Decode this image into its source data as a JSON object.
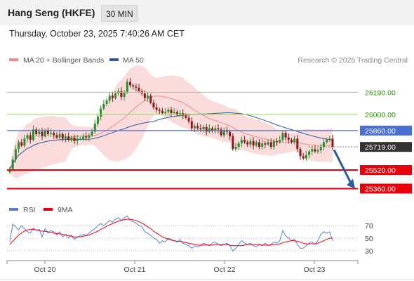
{
  "header": {
    "title": "Hang Seng (HKFE)",
    "interval": "30 MIN"
  },
  "datetime": "Thursday, October 23, 2025 7:40:26 AM CET",
  "credit": "Research © 2025 Trading Central",
  "colors": {
    "bollinger": "#f08a8a",
    "ma50": "#2c5aa0",
    "green": "#9ccf74",
    "blue": "#4a6fd4",
    "red": "#e8000b",
    "up": "#2e8b2e",
    "down": "#8b1a1a",
    "rsi": "#5b7fd4",
    "rsi_ma": "#e8000b",
    "current": "#333333"
  },
  "chart_data": [
    {
      "type": "candlestick",
      "title": "Hang Seng (HKFE)",
      "interval": "30 MIN",
      "legend": [
        "MA 20 + Bollinger Bands",
        "MA 50"
      ],
      "ylim": [
        25290,
        26380
      ],
      "x_tick_labels": [
        "Oct 20",
        "Oct 21",
        "Oct 22",
        "Oct 23"
      ],
      "closes": [
        25530,
        25610,
        25700,
        25760,
        25730,
        25790,
        25820,
        25780,
        25870,
        25830,
        25850,
        25810,
        25860,
        25830,
        25840,
        25820,
        25800,
        25830,
        25790,
        25810,
        25780,
        25800,
        25770,
        25790,
        25790,
        25810,
        25800,
        25820,
        25850,
        25920,
        25980,
        26050,
        26090,
        26120,
        26160,
        26140,
        26180,
        26200,
        26150,
        26190,
        26280,
        26250,
        26240,
        26230,
        26200,
        26180,
        26140,
        26160,
        26100,
        26060,
        26040,
        26030,
        26010,
        26020,
        26040,
        26010,
        26020,
        26000,
        26010,
        25990,
        25970,
        25940,
        25880,
        25900,
        25880,
        25870,
        25890,
        25850,
        25880,
        25860,
        25880,
        25870,
        25820,
        25860,
        25850,
        25810,
        25700,
        25720,
        25750,
        25780,
        25760,
        25740,
        25770,
        25730,
        25760,
        25720,
        25750,
        25740,
        25760,
        25720,
        25770,
        25760,
        25780,
        25840,
        25800,
        25780,
        25760,
        25790,
        25700,
        25640,
        25620,
        25650,
        25680,
        25700,
        25680,
        25690,
        25720,
        25760,
        25780,
        25790,
        25720
      ],
      "levels": [
        {
          "label": "26190.00",
          "value": 26190,
          "style": "green"
        },
        {
          "label": "26000.00",
          "value": 26000,
          "style": "green"
        },
        {
          "label": "25860.00",
          "value": 25860,
          "style": "blue"
        },
        {
          "label": "25719.00",
          "value": 25719,
          "style": "current"
        },
        {
          "label": "25520.00",
          "value": 25520,
          "style": "red"
        },
        {
          "label": "25360.00",
          "value": 25360,
          "style": "red"
        }
      ],
      "arrow": {
        "from": 25719,
        "to": 25360,
        "direction": "down"
      }
    },
    {
      "type": "line",
      "legend": [
        "RSI",
        "9MA"
      ],
      "ylim": [
        20,
        80
      ],
      "y_ticks": [
        30,
        50,
        70
      ],
      "series": [
        {
          "name": "RSI",
          "values": [
            45,
            72,
            68,
            63,
            70,
            65,
            60,
            58,
            66,
            62,
            64,
            52,
            65,
            58,
            62,
            60,
            55,
            60,
            52,
            56,
            50,
            55,
            48,
            52,
            54,
            56,
            54,
            58,
            62,
            65,
            70,
            73,
            70,
            74,
            78,
            75,
            80,
            82,
            78,
            82,
            85,
            78,
            76,
            74,
            70,
            68,
            60,
            58,
            54,
            50,
            48,
            42,
            46,
            44,
            50,
            48,
            46,
            44,
            48,
            42,
            40,
            38,
            34,
            38,
            36,
            38,
            42,
            40,
            38,
            42,
            44,
            40,
            38,
            40,
            42,
            38,
            30,
            34,
            40,
            46,
            42,
            40,
            42,
            38,
            36,
            40,
            38,
            42,
            38,
            40,
            44,
            42,
            46,
            62,
            54,
            50,
            46,
            48,
            40,
            34,
            34,
            38,
            42,
            44,
            40,
            46,
            56,
            60,
            58,
            60,
            46
          ]
        },
        {
          "name": "9MA",
          "values": [
            40,
            45,
            50,
            55,
            58,
            61,
            63,
            64,
            64,
            63,
            62,
            61,
            61,
            60,
            59,
            58,
            57,
            57,
            56,
            55,
            54,
            53,
            52,
            52,
            52,
            53,
            54,
            55,
            57,
            59,
            61,
            64,
            66,
            69,
            71,
            73,
            75,
            77,
            78,
            79,
            80,
            80,
            79,
            78,
            76,
            74,
            71,
            68,
            65,
            61,
            58,
            55,
            52,
            50,
            48,
            47,
            46,
            45,
            45,
            44,
            43,
            42,
            41,
            40,
            39,
            39,
            39,
            39,
            39,
            39,
            40,
            40,
            40,
            40,
            40,
            39,
            38,
            38,
            38,
            38,
            39,
            40,
            40,
            40,
            40,
            40,
            39,
            39,
            39,
            39,
            40,
            40,
            41,
            43,
            44,
            45,
            46,
            46,
            45,
            44,
            42,
            41,
            41,
            41,
            41,
            42,
            44,
            46,
            48,
            50,
            50
          ]
        }
      ]
    }
  ]
}
